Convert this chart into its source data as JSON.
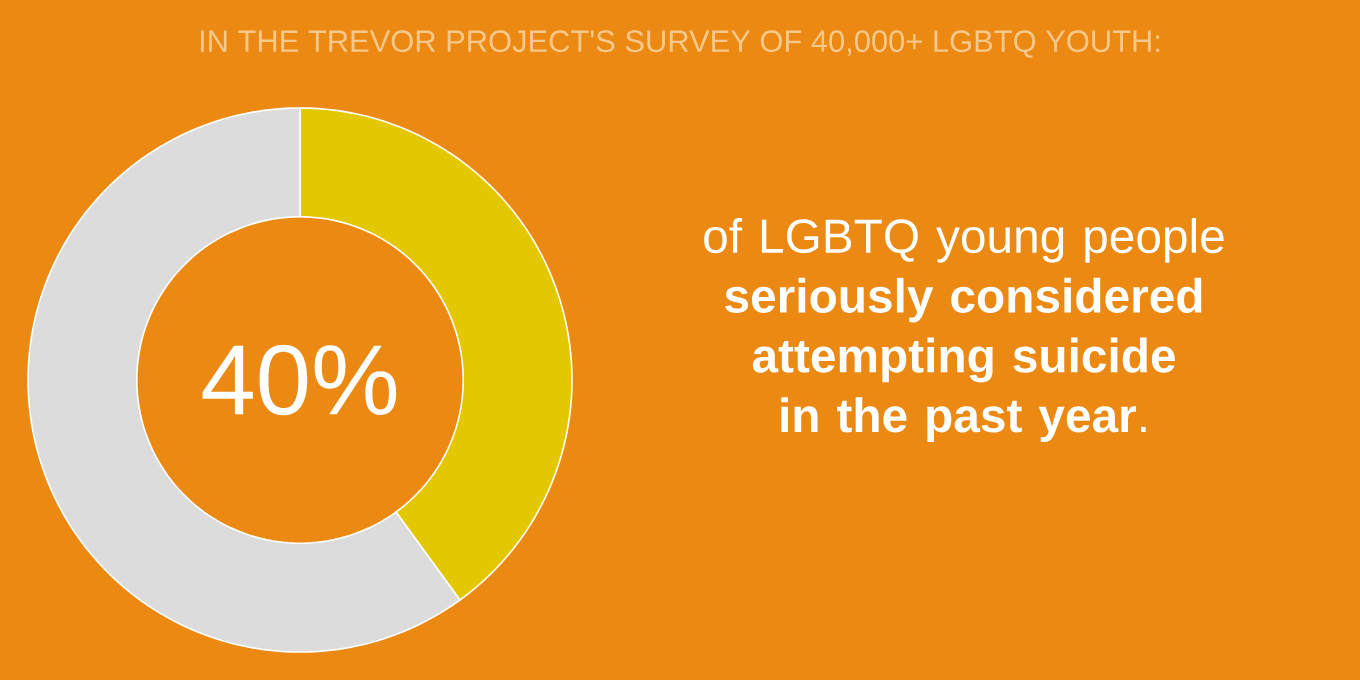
{
  "chart_data": {
    "type": "donut",
    "title": "IN THE TREVOR PROJECT'S SURVEY OF 40,000+ LGBTQ YOUTH:",
    "categories": [
      null,
      null
    ],
    "values": [
      40,
      60
    ],
    "colors": [
      "#e3c800",
      "#dcdcdc"
    ],
    "annotations": [
      "40%",
      "of LGBTQ young people **seriously considered attempting suicide in the past year**."
    ]
  }
}
